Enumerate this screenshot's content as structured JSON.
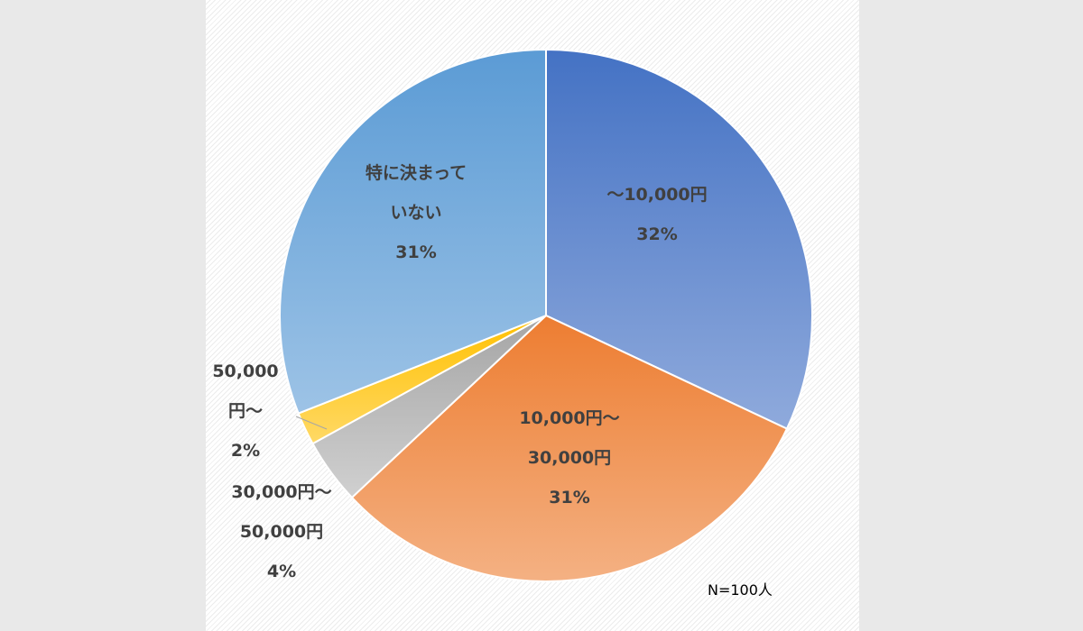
{
  "chart_data": {
    "type": "pie",
    "title": "",
    "note": "N=100人",
    "slices": [
      {
        "label_lines": [
          "～10,000円",
          "32%"
        ],
        "value": 32,
        "colors": [
          "#4472c4",
          "#8faadc"
        ]
      },
      {
        "label_lines": [
          "10,000円～",
          "30,000円",
          "31%"
        ],
        "value": 31,
        "colors": [
          "#ed7d31",
          "#f4b183"
        ]
      },
      {
        "label_lines": [
          "30,000円～",
          "50,000円",
          "4%"
        ],
        "value": 4,
        "colors": [
          "#a5a5a5",
          "#d0d0d0"
        ]
      },
      {
        "label_lines": [
          "50,000",
          "円～",
          "2%"
        ],
        "value": 2,
        "colors": [
          "#ffc000",
          "#ffd966"
        ]
      },
      {
        "label_lines": [
          "特に決まって",
          "いない",
          "31%"
        ],
        "value": 31,
        "colors": [
          "#5b9bd5",
          "#9dc3e6"
        ]
      }
    ]
  }
}
